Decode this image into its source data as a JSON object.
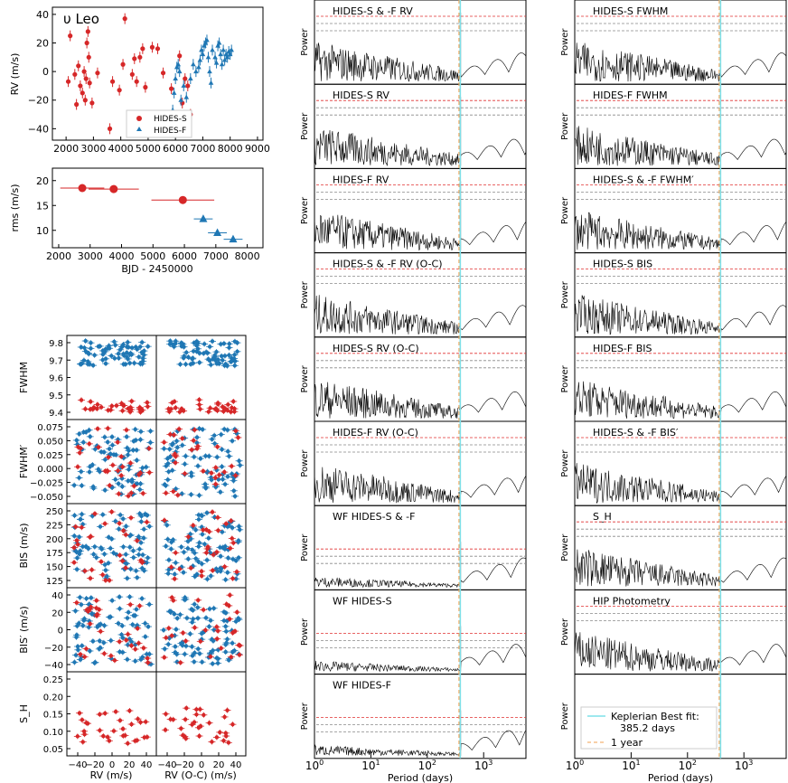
{
  "rv_panel": {
    "title": "υ Leo",
    "ylabel": "RV (m/s)",
    "xticks": [
      "2000",
      "3000",
      "4000",
      "5000",
      "6000",
      "7000",
      "8000",
      "9000"
    ],
    "yticks": [
      "−40",
      "−20",
      "0",
      "20",
      "40"
    ],
    "legend": [
      "HIDES-S",
      "HIDES-F"
    ],
    "chart_data": {
      "type": "scatter",
      "xlim": [
        1500,
        9200
      ],
      "ylim": [
        -48,
        45
      ],
      "series": [
        {
          "name": "HIDES-S",
          "color": "#d62728",
          "marker": "circle",
          "x": [
            2080,
            2150,
            2320,
            2380,
            2450,
            2520,
            2600,
            2660,
            2700,
            2730,
            2760,
            2800,
            2830,
            2860,
            2950,
            3150,
            3600,
            3700,
            3950,
            4080,
            4150,
            4420,
            4500,
            4580,
            4700,
            4800,
            4900,
            5150,
            5350,
            5550,
            5850,
            6150,
            6250,
            6350,
            6450,
            6550
          ],
          "y": [
            -7,
            25,
            -2,
            -23,
            4,
            -10,
            -15,
            0,
            -20,
            -5,
            20,
            28,
            10,
            -8,
            -22,
            -1,
            -40,
            -7,
            -13,
            5,
            37,
            -2,
            9,
            -7,
            10,
            16,
            -11,
            17,
            16,
            -1,
            -12,
            11,
            -22,
            -5,
            -10,
            -30
          ]
        },
        {
          "name": "HIDES-F",
          "color": "#1f77b4",
          "marker": "triangle",
          "x": [
            5900,
            5950,
            6000,
            6050,
            6100,
            6150,
            6200,
            6300,
            6400,
            6550,
            6650,
            6750,
            6850,
            6900,
            6950,
            7000,
            7050,
            7100,
            7150,
            7200,
            7250,
            7300,
            7350,
            7450,
            7500,
            7550,
            7600,
            7650,
            7700,
            7750,
            7800,
            7850,
            7900,
            7950,
            8000,
            8050
          ],
          "y": [
            -27,
            -15,
            -5,
            3,
            5,
            0,
            -20,
            -10,
            -18,
            -5,
            5,
            0,
            3,
            8,
            15,
            12,
            18,
            20,
            22,
            10,
            0,
            -8,
            15,
            10,
            6,
            18,
            20,
            12,
            5,
            15,
            8,
            12,
            10,
            14,
            12,
            15
          ]
        }
      ]
    }
  },
  "rms_panel": {
    "xlabel": "BJD - 2450000",
    "ylabel": "rms (m/s)",
    "xticks": [
      "2000",
      "3000",
      "4000",
      "5000",
      "6000",
      "7000",
      "8000"
    ],
    "yticks": [
      "10",
      "15",
      "20"
    ],
    "chart_data": {
      "type": "scatter",
      "xlim": [
        1800,
        8500
      ],
      "ylim": [
        6.5,
        22.5
      ],
      "series": [
        {
          "name": "HIDES-S",
          "color": "#d62728",
          "marker": "circle",
          "x": [
            2750,
            3750,
            5950
          ],
          "xerr": [
            700,
            800,
            1000
          ],
          "y": [
            18.5,
            18.3,
            16.1
          ]
        },
        {
          "name": "HIDES-F",
          "color": "#1f77b4",
          "marker": "triangle",
          "x": [
            6600,
            7050,
            7550
          ],
          "xerr": [
            300,
            300,
            300
          ],
          "y": [
            12.3,
            9.5,
            8.2
          ]
        }
      ]
    }
  },
  "corr_panels": {
    "xlabel_left": "RV (m/s)",
    "xlabel_right": "RV (O-C) (m/s)",
    "xticks": [
      "−40",
      "−20",
      "0",
      "20",
      "40"
    ],
    "rows": [
      {
        "ylabel": "FWHM",
        "yticks": [
          "9.4",
          "9.5",
          "9.6",
          "9.7",
          "9.8"
        ]
      },
      {
        "ylabel": "FWHM′",
        "yticks": [
          "−0.050",
          "−0.025",
          "0.000",
          "0.025",
          "0.050",
          "0.075"
        ]
      },
      {
        "ylabel": "BIS (m/s)",
        "yticks": [
          "125",
          "150",
          "175",
          "200",
          "225",
          "250"
        ]
      },
      {
        "ylabel": "BIS′ (m/s)",
        "yticks": [
          "−40",
          "−20",
          "0",
          "20",
          "40"
        ]
      },
      {
        "ylabel": "S_H",
        "yticks": [
          "0.05",
          "0.10",
          "0.15",
          "0.20",
          "0.25"
        ]
      }
    ]
  },
  "periodogram_columns": {
    "xlabel": "Period (days)",
    "xticks": [
      "10^0",
      "10^1",
      "10^2",
      "10^3"
    ],
    "ylabel": "Power",
    "col_mid": [
      "HIDES-S & -F RV",
      "HIDES-S RV",
      "HIDES-F RV",
      "HIDES-S & -F RV (O-C)",
      "HIDES-S RV (O-C)",
      "HIDES-F RV (O-C)",
      "WF HIDES-S & -F",
      "WF HIDES-S",
      "WF HIDES-F"
    ],
    "col_right": [
      "HIDES-S FWHM",
      "HIDES-F FWHM",
      "HIDES-S & -F FWHM′",
      "HIDES-S BIS",
      "HIDES-F BIS",
      "HIDES-S & -F BIS′",
      "S_H",
      "HIP Photometry",
      ""
    ],
    "legend": {
      "fit_label": "Keplerian Best fit:",
      "fit_value": "385.2 days",
      "year_label": "1 year"
    },
    "keplerian_period": 385.2,
    "year_period": 365.25,
    "colors": {
      "fit": "#7fe0e8",
      "year": "#f0a050",
      "fap1": "#e03030",
      "fap2": "#888888"
    }
  }
}
